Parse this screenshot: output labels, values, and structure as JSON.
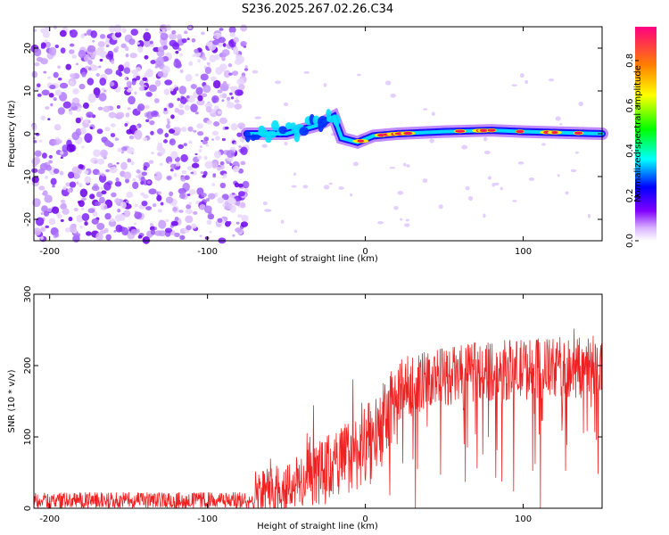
{
  "title": "S236.2025.267.02.26.C34",
  "chart_data": [
    {
      "type": "heatmap",
      "xlabel": "Height of straight line (km)",
      "ylabel": "Frequency (Hz)",
      "xlim": [
        -210,
        150
      ],
      "ylim": [
        -25,
        25
      ],
      "x_ticks": [
        -200,
        -100,
        0,
        100
      ],
      "y_ticks": [
        -20,
        -10,
        0,
        10,
        20
      ],
      "noise_region_x": [
        -210,
        -75
      ],
      "signal_band": [
        {
          "x": -75,
          "freq": 0.0
        },
        {
          "x": -50,
          "freq": 0.0
        },
        {
          "x": -30,
          "freq": 2.0
        },
        {
          "x": -20,
          "freq": 4.0
        },
        {
          "x": -15,
          "freq": -1.0
        },
        {
          "x": -5,
          "freq": -2.0
        },
        {
          "x": 5,
          "freq": -0.5
        },
        {
          "x": 20,
          "freq": 0.0
        },
        {
          "x": 50,
          "freq": 0.5
        },
        {
          "x": 80,
          "freq": 0.8
        },
        {
          "x": 100,
          "freq": 0.5
        },
        {
          "x": 150,
          "freq": 0.0
        }
      ],
      "colorbar": {
        "label": "Normalized spectral amplitude",
        "range": [
          0.0,
          0.95
        ],
        "ticks": [
          0.0,
          0.2,
          0.4,
          0.6,
          0.8
        ],
        "tick_labels": [
          "0.0",
          "0.2",
          "0.4",
          "0.6",
          "0.8"
        ],
        "colors": [
          "#ffffff",
          "#8000ff",
          "#0000ff",
          "#00ffff",
          "#00ff00",
          "#ffff00",
          "#ff8000",
          "#ff0080"
        ]
      }
    },
    {
      "type": "line",
      "xlabel": "Height of straight line (km)",
      "ylabel": "SNR (10 * v/v)",
      "xlim": [
        -210,
        150
      ],
      "ylim": [
        0,
        300
      ],
      "x_ticks": [
        -200,
        -100,
        0,
        100
      ],
      "y_ticks": [
        0,
        100,
        200,
        300
      ],
      "color": "#ee2222",
      "series": [
        {
          "name": "SNR",
          "trend": [
            {
              "x": -210,
              "base": 8,
              "spread": 22
            },
            {
              "x": -72,
              "base": 8,
              "spread": 22
            },
            {
              "x": -70,
              "base": 15,
              "spread": 60
            },
            {
              "x": -40,
              "base": 25,
              "spread": 80
            },
            {
              "x": -20,
              "base": 45,
              "spread": 100
            },
            {
              "x": 0,
              "base": 70,
              "spread": 110
            },
            {
              "x": 15,
              "base": 110,
              "spread": 120
            },
            {
              "x": 20,
              "base": 150,
              "spread": 90
            },
            {
              "x": 40,
              "base": 170,
              "spread": 80
            },
            {
              "x": 80,
              "base": 180,
              "spread": 85
            },
            {
              "x": 150,
              "base": 185,
              "spread": 90
            }
          ]
        }
      ]
    }
  ]
}
